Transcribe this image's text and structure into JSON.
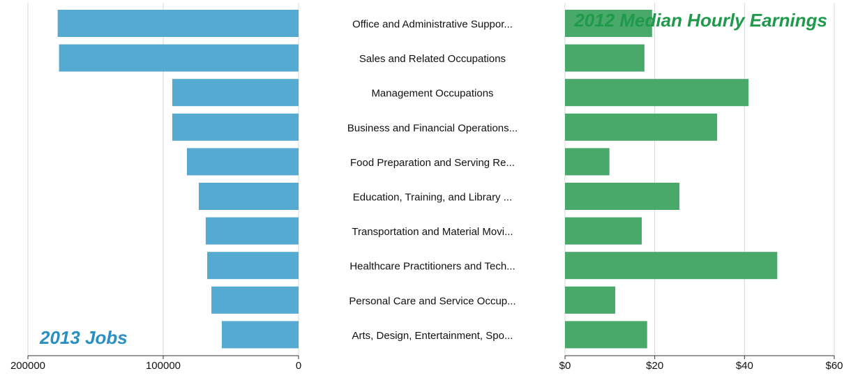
{
  "chart_data": [
    {
      "type": "bar",
      "title": "2013 Jobs",
      "color": "#4ba5cf",
      "title_color": "#2a8fc3",
      "categories": [
        "Office and Administrative Suppor...",
        "Sales and Related Occupations",
        "Management Occupations",
        "Business and Financial Operations...",
        "Food Preparation and Serving Re...",
        "Education, Training, and Library ...",
        "Transportation and Material Movi...",
        "Healthcare Practitioners and Tech...",
        "Personal Care and Service Occup...",
        "Arts, Design, Entertainment, Spo..."
      ],
      "values": [
        178000,
        177000,
        93300,
        93300,
        82500,
        73700,
        68600,
        67500,
        64400,
        56700
      ],
      "xlim": [
        200000,
        0
      ],
      "xticks": [
        200000,
        100000,
        0
      ],
      "grid": true
    },
    {
      "type": "bar",
      "title": "2012 Median Hourly Earnings",
      "color": "#3fa463",
      "title_color": "#1f9a4a",
      "values": [
        19.4,
        17.7,
        40.9,
        33.9,
        9.9,
        25.5,
        17.1,
        47.3,
        11.2,
        18.3
      ],
      "xlim": [
        0,
        60
      ],
      "xticks": [
        {
          "value": 0,
          "label": "$0"
        },
        {
          "value": 20,
          "label": "$20"
        },
        {
          "value": 40,
          "label": "$40"
        },
        {
          "value": 60,
          "label": "$60"
        }
      ],
      "grid": true
    }
  ]
}
